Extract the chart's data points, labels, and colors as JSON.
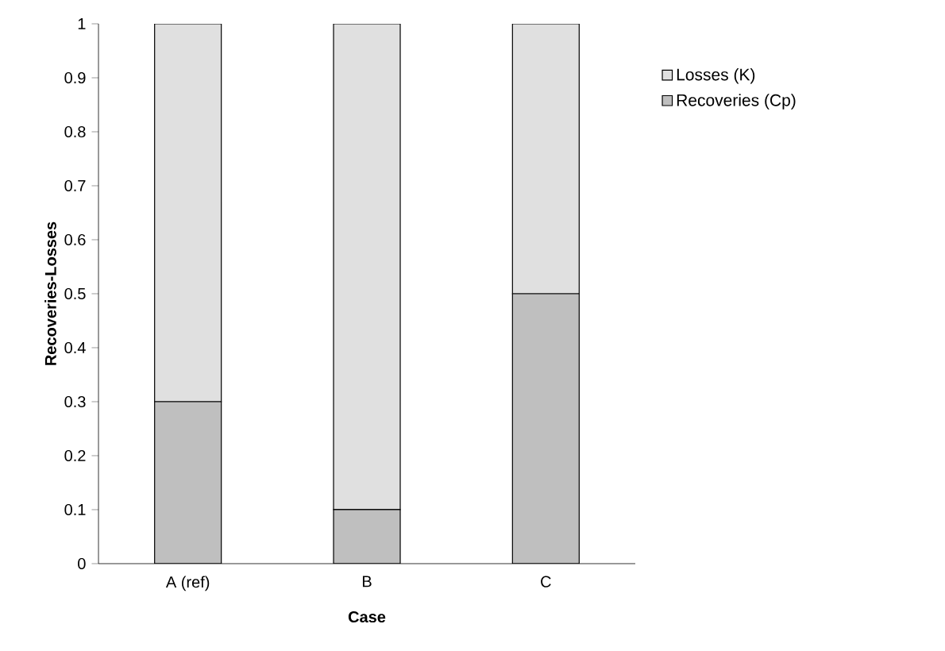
{
  "chart_data": {
    "type": "bar",
    "stacked": true,
    "xlabel": "Case",
    "ylabel": "Recoveries-Losses",
    "categories": [
      "A (ref)",
      "B",
      "C"
    ],
    "series": [
      {
        "name": "Recoveries (Cp)",
        "color": "#bfbfbf",
        "values": [
          0.3,
          0.1,
          0.5
        ]
      },
      {
        "name": "Losses (K)",
        "color": "#e0e0e0",
        "values": [
          0.7,
          0.9,
          0.5
        ]
      }
    ],
    "ylim": [
      0,
      1
    ],
    "yticks": [
      0,
      0.1,
      0.2,
      0.3,
      0.4,
      0.5,
      0.6,
      0.7,
      0.8,
      0.9,
      1
    ],
    "grid": false,
    "legend": "right"
  }
}
